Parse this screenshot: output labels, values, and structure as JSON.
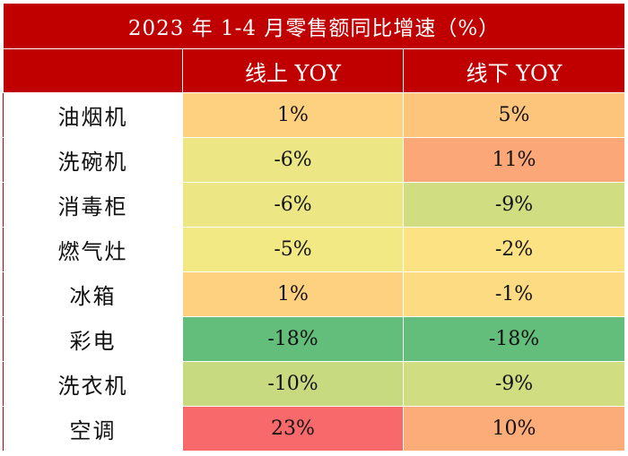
{
  "chart_data": {
    "type": "table",
    "title": "2023 年 1-4 月零售额同比增速（%）",
    "columns": [
      "",
      "线上 YOY",
      "线下 YOY"
    ],
    "rows": [
      {
        "category": "油烟机",
        "online": "1%",
        "offline": "5%",
        "online_color": "#fdd17f",
        "offline_color": "#fdc47c"
      },
      {
        "category": "洗碗机",
        "online": "-6%",
        "offline": "11%",
        "online_color": "#ece784",
        "offline_color": "#fba777"
      },
      {
        "category": "消毒柜",
        "online": "-6%",
        "offline": "-9%",
        "online_color": "#ece784",
        "offline_color": "#d1dd81"
      },
      {
        "category": "燃气灶",
        "online": "-5%",
        "offline": "-2%",
        "online_color": "#f2e884",
        "offline_color": "#fde283"
      },
      {
        "category": "冰箱",
        "online": "1%",
        "offline": "-1%",
        "online_color": "#fdd17f",
        "offline_color": "#fddb82"
      },
      {
        "category": "彩电",
        "online": "-18%",
        "offline": "-18%",
        "online_color": "#63be7b",
        "offline_color": "#63be7b"
      },
      {
        "category": "洗衣机",
        "online": "-10%",
        "offline": "-9%",
        "online_color": "#c7da80",
        "offline_color": "#d1dd81"
      },
      {
        "category": "空调",
        "online": "23%",
        "offline": "10%",
        "online_color": "#f8696b",
        "offline_color": "#fcac78"
      }
    ],
    "header_color": "#c00000"
  }
}
